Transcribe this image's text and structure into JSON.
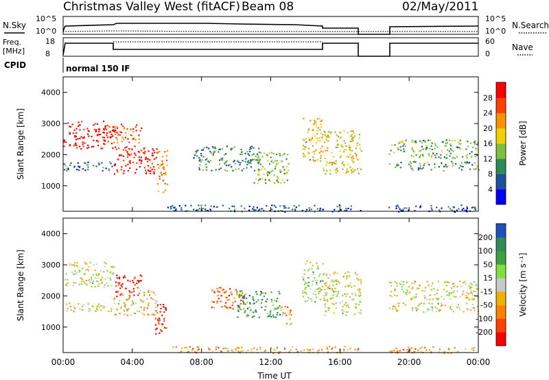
{
  "header": {
    "title": "Christmas Valley West (fitACF)",
    "beam": "Beam 08",
    "date": "02/May/2011"
  },
  "status_panels": {
    "nsky_label": "N.Sky",
    "nsearch_label": "N.Search",
    "noise_ticks": [
      "10^5",
      "10^0"
    ],
    "freq_label_1": "Freq.",
    "freq_label_2": "[MHz]",
    "freq_ticks": [
      "18",
      "8"
    ],
    "nave_label": "Nave",
    "nave_ticks": [
      "60",
      "0"
    ],
    "cpid_label": "CPID",
    "cpid_text": "normal 150 IF"
  },
  "chart_data": [
    {
      "type": "heatmap",
      "name": "Power",
      "ylabel": "Slant Range [km]",
      "xlabel": "",
      "x_ticks": [
        "00:00",
        "04:00",
        "08:00",
        "12:00",
        "16:00",
        "20:00",
        "00:00"
      ],
      "y_ticks": [
        "1000",
        "2000",
        "3000",
        "4000"
      ],
      "xlim_hours": [
        0,
        24
      ],
      "ylim_km": [
        180,
        4500
      ],
      "colorbar": {
        "label": "Power [dB]",
        "ticks": [
          "28",
          "24",
          "20",
          "16",
          "12",
          "8",
          "4"
        ],
        "colors": [
          "#0000ff",
          "#1e50a0",
          "#2e8b57",
          "#7fbf3f",
          "#f0d000",
          "#ff9000",
          "#ff4000",
          "#ff0000"
        ]
      },
      "regions": [
        {
          "t0": 0.0,
          "t1": 2.9,
          "r0": 2200,
          "r1": 3100,
          "level": 0.95
        },
        {
          "t0": 0.0,
          "t1": 2.9,
          "r0": 1500,
          "r1": 1800,
          "level": 0.25
        },
        {
          "t0": 2.9,
          "t1": 5.4,
          "r0": 1400,
          "r1": 2300,
          "level": 0.95
        },
        {
          "t0": 2.9,
          "t1": 4.6,
          "r0": 2400,
          "r1": 3000,
          "level": 0.8
        },
        {
          "t0": 5.4,
          "t1": 6.0,
          "r0": 800,
          "r1": 2200,
          "level": 0.7
        },
        {
          "t0": 7.5,
          "t1": 11.5,
          "r0": 1500,
          "r1": 2300,
          "level": 0.3
        },
        {
          "t0": 11.0,
          "t1": 13.0,
          "r0": 1100,
          "r1": 2100,
          "level": 0.45
        },
        {
          "t0": 13.8,
          "t1": 15.0,
          "r0": 1800,
          "r1": 3200,
          "level": 0.6
        },
        {
          "t0": 15.0,
          "t1": 17.2,
          "r0": 1400,
          "r1": 2800,
          "level": 0.55
        },
        {
          "t0": 18.8,
          "t1": 24.0,
          "r0": 1500,
          "r1": 1800,
          "level": 0.35
        },
        {
          "t0": 18.8,
          "t1": 24.0,
          "r0": 1900,
          "r1": 2500,
          "level": 0.4
        },
        {
          "t0": 6.0,
          "t1": 17.2,
          "r0": 180,
          "r1": 400,
          "level": 0.2
        },
        {
          "t0": 18.8,
          "t1": 24.0,
          "r0": 180,
          "r1": 400,
          "level": 0.15
        }
      ]
    },
    {
      "type": "heatmap",
      "name": "Velocity",
      "ylabel": "Slant Range [km]",
      "xlabel": "Time UT",
      "x_ticks": [
        "00:00",
        "04:00",
        "08:00",
        "12:00",
        "16:00",
        "20:00",
        "00:00"
      ],
      "y_ticks": [
        "1000",
        "2000",
        "3000",
        "4000"
      ],
      "xlim_hours": [
        0,
        24
      ],
      "ylim_km": [
        180,
        4500
      ],
      "colorbar": {
        "label": "Velocity [m s⁻¹]",
        "ticks": [
          "200",
          "100",
          "50",
          "15",
          "-15",
          "-50",
          "-100",
          "-200"
        ],
        "colors": [
          "#ff0000",
          "#ff4000",
          "#ff8000",
          "#f0b000",
          "#c8c8c8",
          "#7fdf3f",
          "#3fa040",
          "#2e8b57",
          "#1e50c0"
        ]
      },
      "regions": [
        {
          "t0": 0.0,
          "t1": 2.9,
          "r0": 2300,
          "r1": 3100,
          "level": 0.5
        },
        {
          "t0": 0.0,
          "t1": 2.9,
          "r0": 1500,
          "r1": 1800,
          "level": 0.5
        },
        {
          "t0": 2.9,
          "t1": 5.4,
          "r0": 1400,
          "r1": 2200,
          "level": 0.4
        },
        {
          "t0": 3.0,
          "t1": 4.5,
          "r0": 2000,
          "r1": 2700,
          "level": 0.05
        },
        {
          "t0": 5.3,
          "t1": 6.0,
          "r0": 800,
          "r1": 1800,
          "level": 0.05
        },
        {
          "t0": 8.5,
          "t1": 10.5,
          "r0": 1600,
          "r1": 2300,
          "level": 0.2
        },
        {
          "t0": 10.0,
          "t1": 12.5,
          "r0": 1300,
          "r1": 2200,
          "level": 0.75
        },
        {
          "t0": 12.5,
          "t1": 13.2,
          "r0": 1100,
          "r1": 1700,
          "level": 0.3
        },
        {
          "t0": 13.8,
          "t1": 15.0,
          "r0": 1800,
          "r1": 3200,
          "level": 0.55
        },
        {
          "t0": 15.0,
          "t1": 17.2,
          "r0": 1400,
          "r1": 2800,
          "level": 0.5
        },
        {
          "t0": 18.8,
          "t1": 24.0,
          "r0": 1500,
          "r1": 1800,
          "level": 0.5
        },
        {
          "t0": 18.8,
          "t1": 24.0,
          "r0": 1900,
          "r1": 2500,
          "level": 0.5
        },
        {
          "t0": 6.0,
          "t1": 17.2,
          "r0": 180,
          "r1": 400,
          "level": 0.35
        },
        {
          "t0": 18.8,
          "t1": 24.0,
          "r0": 180,
          "r1": 400,
          "level": 0.35
        }
      ]
    }
  ]
}
